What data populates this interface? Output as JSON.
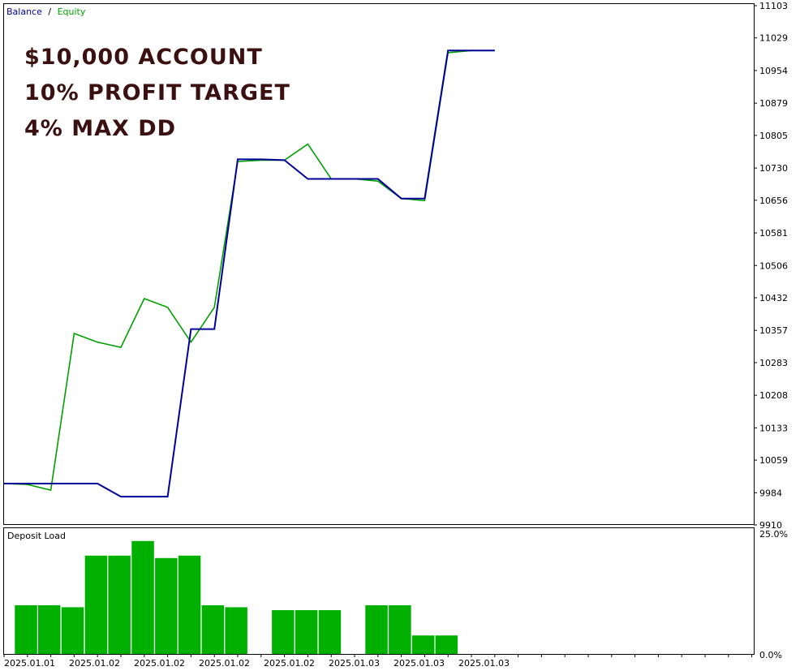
{
  "legend": {
    "balance_label": "Balance",
    "separator": "/",
    "equity_label": "Equity",
    "balance_color": "#000099",
    "equity_color": "#00A000"
  },
  "overlay": {
    "line1": "$10,000 ACCOUNT",
    "line2": "10% PROFIT TARGET",
    "line3": "4% MAX DD",
    "color": "#3a1010"
  },
  "deposit_panel": {
    "title": "Deposit Load",
    "top_label": "25.0%",
    "bottom_label": "0.0%",
    "bar_color": "#00B000"
  },
  "x_axis": {
    "labels": [
      "2025.01.01",
      "2025.01.02",
      "2025.01.02",
      "2025.01.02",
      "2025.01.02",
      "2025.01.03",
      "2025.01.03",
      "2025.01.03"
    ]
  },
  "chart_data": [
    {
      "type": "line",
      "x": [
        0,
        1,
        2,
        3,
        4,
        5,
        6,
        7,
        8,
        9,
        10,
        11,
        12,
        13,
        14,
        15,
        16,
        17,
        18,
        19,
        20,
        21
      ],
      "series": [
        {
          "name": "Balance",
          "color": "#000099",
          "values": [
            10005,
            10005,
            10005,
            10005,
            10005,
            9975,
            9975,
            9975,
            10360,
            10360,
            10750,
            10750,
            10748,
            10705,
            10705,
            10705,
            10705,
            10660,
            10660,
            11000,
            11000,
            11000
          ]
        },
        {
          "name": "Equity",
          "color": "#00A000",
          "values": [
            10005,
            10003,
            9990,
            10350,
            10330,
            10318,
            10430,
            10410,
            10330,
            10410,
            10745,
            10748,
            10748,
            10785,
            10705,
            10705,
            10700,
            10660,
            10655,
            10995,
            11000,
            11000
          ]
        }
      ],
      "y_ticks": [
        11103,
        11029,
        10954,
        10879,
        10805,
        10730,
        10656,
        10581,
        10506,
        10432,
        10357,
        10283,
        10208,
        10133,
        10059,
        9984,
        9910
      ],
      "ylim": [
        9910,
        11103
      ]
    },
    {
      "type": "bar",
      "title": "Deposit Load",
      "x": [
        0,
        1,
        2,
        3,
        4,
        5,
        6,
        7,
        8,
        9,
        10,
        11,
        12,
        13,
        14,
        15,
        16,
        17,
        18,
        19
      ],
      "values": [
        10.0,
        10.0,
        9.6,
        20.2,
        20.2,
        23.2,
        19.7,
        20.2,
        10.0,
        9.6,
        0,
        9.0,
        9.0,
        9.0,
        0,
        10.0,
        10.0,
        3.8,
        3.8,
        0
      ],
      "ylim": [
        0,
        25
      ]
    }
  ]
}
